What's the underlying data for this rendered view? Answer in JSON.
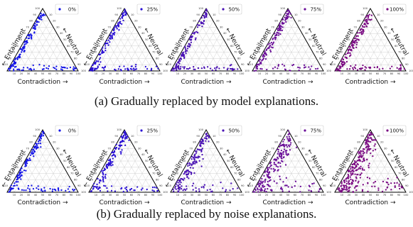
{
  "captions": {
    "a": "(a) Gradually replaced by model explanations.",
    "b": "(b) Gradually replaced by noise explanations."
  },
  "axis_labels": {
    "left": "← Entailment",
    "right": "← Neutral",
    "bottom": "Contradiction →"
  },
  "ticks": [
    "10",
    "20",
    "30",
    "40",
    "50",
    "60",
    "70",
    "80",
    "90",
    "100"
  ],
  "colors": {
    "0%": "#1414e6",
    "25%": "#2a10d4",
    "50%": "#4a13b4",
    "75%": "#6a0f98",
    "100%": "#7a0a82"
  },
  "chart_data": [
    {
      "type": "scatter",
      "subtype": "ternary",
      "row": "a",
      "axes": [
        "Entailment",
        "Neutral",
        "Contradiction"
      ],
      "panels": [
        {
          "legend": "0%",
          "color": "#1414e6",
          "spread": 0.1,
          "count": 150
        },
        {
          "legend": "25%",
          "color": "#2a10d4",
          "spread": 0.1,
          "count": 150
        },
        {
          "legend": "50%",
          "color": "#4a13b4",
          "spread": 0.11,
          "count": 150
        },
        {
          "legend": "75%",
          "color": "#6a0f98",
          "spread": 0.12,
          "count": 150
        },
        {
          "legend": "100%",
          "color": "#7a0a82",
          "spread": 0.12,
          "count": 160
        }
      ]
    },
    {
      "type": "scatter",
      "subtype": "ternary",
      "row": "b",
      "axes": [
        "Entailment",
        "Neutral",
        "Contradiction"
      ],
      "panels": [
        {
          "legend": "0%",
          "color": "#1414e6",
          "spread": 0.1,
          "count": 150
        },
        {
          "legend": "25%",
          "color": "#2a10d4",
          "spread": 0.16,
          "count": 155
        },
        {
          "legend": "50%",
          "color": "#4a13b4",
          "spread": 0.22,
          "count": 165
        },
        {
          "legend": "75%",
          "color": "#6a0f98",
          "spread": 0.28,
          "count": 200
        },
        {
          "legend": "100%",
          "color": "#7a0a82",
          "spread": 0.34,
          "count": 260
        }
      ]
    }
  ]
}
